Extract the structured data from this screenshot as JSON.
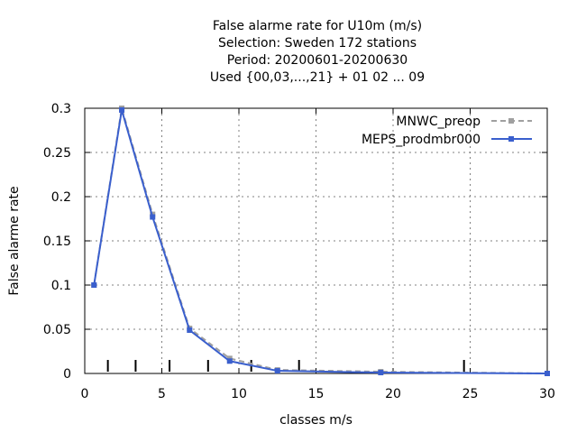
{
  "chart_data": {
    "type": "line",
    "title_lines": [
      "False alarme rate  for U10m (m/s)",
      "Selection: Sweden    172 stations",
      "Period: 20200601-20200630",
      "Used {00,03,...,21} + 01 02 ... 09"
    ],
    "xlabel": "classes m/s",
    "ylabel": "False alarme rate",
    "xlim": [
      0,
      30
    ],
    "ylim": [
      0,
      0.3
    ],
    "x_ticks": [
      "0",
      "5",
      "10",
      "15",
      "20",
      "25",
      "30"
    ],
    "y_ticks": [
      "0",
      "0.05",
      "0.1",
      "0.15",
      "0.2",
      "0.25",
      "0.3"
    ],
    "grid": true,
    "legend_position": "top-right",
    "class_marks": [
      1.5,
      3.3,
      5.5,
      8.0,
      10.8,
      13.9,
      24.6
    ],
    "series": [
      {
        "name": "MNWC_preop",
        "color": "#a0a0a0",
        "dash": true,
        "x": [
          0.6,
          2.4,
          4.4,
          6.8,
          9.4,
          12.5,
          19.2,
          30.0
        ],
        "y": [
          0.1,
          0.3,
          0.18,
          0.051,
          0.017,
          0.004,
          0.002,
          0.0
        ]
      },
      {
        "name": "MEPS_prodmbr000",
        "color": "#3a5fcd",
        "dash": false,
        "x": [
          0.6,
          2.4,
          4.4,
          6.8,
          9.4,
          12.5,
          19.2,
          30.0
        ],
        "y": [
          0.1,
          0.298,
          0.177,
          0.049,
          0.014,
          0.003,
          0.001,
          0.0
        ]
      }
    ]
  }
}
